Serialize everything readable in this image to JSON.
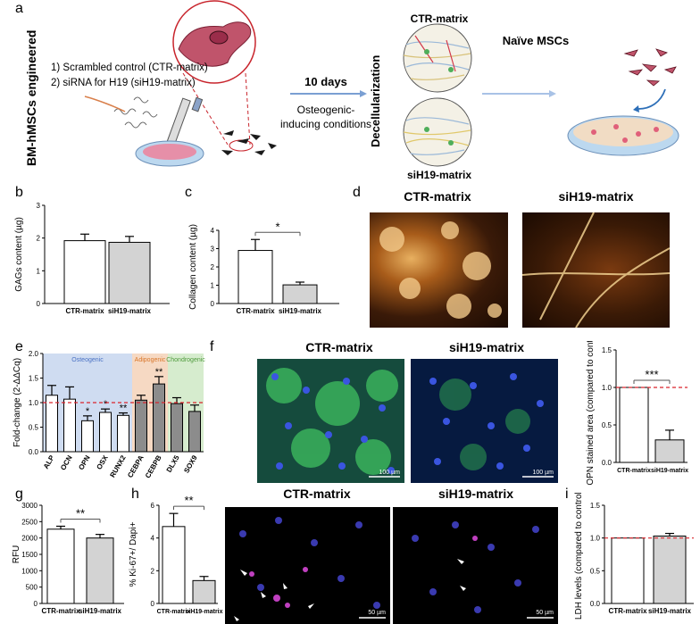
{
  "panels": {
    "a": "a",
    "b": "b",
    "c": "c",
    "d": "d",
    "e": "e",
    "f": "f",
    "g": "g",
    "h": "h",
    "i": "i"
  },
  "schematic": {
    "side_label": "BM-hMSCs engineered",
    "step1": "1) Scrambled control (CTR-matrix)",
    "step2": "2) siRNA for H19 (siH19-matrix)",
    "days": "10 days",
    "condition_line1": "Osteogenic-",
    "condition_line2": "inducing conditions",
    "decell": "Decellularization",
    "ctr": "CTR-matrix",
    "sih19": "siH19-matrix",
    "naive": "Naïve MSCs"
  },
  "micrographs": {
    "d_ctr": "CTR-matrix",
    "d_sih19": "siH19-matrix",
    "f_ctr": "CTR-matrix",
    "f_sih19": "siH19-matrix",
    "h_ctr": "CTR-matrix",
    "h_sih19": "siH19-matrix",
    "scale_100": "100 µm",
    "scale_50": "50 µm"
  },
  "chart_data": [
    {
      "panel": "b",
      "type": "bar",
      "categories": [
        "CTR-matrix",
        "siH19-matrix"
      ],
      "values": [
        1.92,
        1.87
      ],
      "errors": [
        0.2,
        0.18
      ],
      "ylabel": "GAGs content (µg)",
      "ylim": [
        0,
        3
      ],
      "yticks": [
        "0",
        "1",
        "2",
        "3"
      ],
      "colors": [
        "#ffffff",
        "#d3d3d3"
      ]
    },
    {
      "panel": "c",
      "type": "bar",
      "categories": [
        "CTR-matrix",
        "siH19-matrix"
      ],
      "values": [
        2.9,
        1.02
      ],
      "errors": [
        0.6,
        0.15
      ],
      "ylabel": "Collagen content (µg)",
      "ylim": [
        0,
        4
      ],
      "yticks": [
        "0",
        "1",
        "2",
        "3",
        "4"
      ],
      "colors": [
        "#ffffff",
        "#d3d3d3"
      ],
      "significance": "*"
    },
    {
      "panel": "e",
      "type": "bar",
      "categories": [
        "ALP",
        "OCN",
        "OPN",
        "OSX",
        "RUNX2",
        "CEBPA",
        "CEBPB",
        "DLX5",
        "SOX9"
      ],
      "values": [
        1.15,
        1.07,
        0.63,
        0.8,
        0.74,
        1.05,
        1.38,
        0.98,
        0.82
      ],
      "errors": [
        0.2,
        0.25,
        0.1,
        0.07,
        0.05,
        0.1,
        0.15,
        0.12,
        0.13
      ],
      "ylabel": "Fold-change (2-ΔΔCq)",
      "ylim": [
        0,
        2
      ],
      "yticks": [
        "0.0",
        "0.5",
        "1.0",
        "1.5",
        "2.0"
      ],
      "reference_line": 1.0,
      "colors": [
        "#ffffff",
        "#ffffff",
        "#ffffff",
        "#ffffff",
        "#ffffff",
        "#8c8c8c",
        "#8c8c8c",
        "#8c8c8c",
        "#8c8c8c"
      ],
      "marks": [
        "",
        "",
        "*",
        "*",
        "**",
        "",
        "**",
        "",
        ""
      ],
      "groups": [
        {
          "name": "Osteogenic",
          "color": "#4a72c4"
        },
        {
          "name": "Adipogenic",
          "color": "#d9772b"
        },
        {
          "name": "Chondrogenic",
          "color": "#4f9a3c"
        }
      ]
    },
    {
      "panel": "f",
      "type": "bar",
      "categories": [
        "CTR-matrix",
        "siH19-matrix"
      ],
      "values": [
        1.0,
        0.3
      ],
      "errors": [
        0,
        0.13
      ],
      "ylabel": "OPN stained area (compared to control)",
      "ylim": [
        0,
        1.5
      ],
      "yticks": [
        "0.0",
        "0.5",
        "1.0",
        "1.5"
      ],
      "reference_line": 1.0,
      "colors": [
        "#ffffff",
        "#d3d3d3"
      ],
      "significance": "***"
    },
    {
      "panel": "g",
      "type": "bar",
      "categories": [
        "CTR-matrix",
        "siH19-matrix"
      ],
      "values": [
        2270,
        2000
      ],
      "errors": [
        90,
        110
      ],
      "ylabel": "RFU",
      "ylim": [
        0,
        3000
      ],
      "yticks": [
        "0",
        "500",
        "1000",
        "1500",
        "2000",
        "2500",
        "3000"
      ],
      "colors": [
        "#ffffff",
        "#d3d3d3"
      ],
      "significance": "**"
    },
    {
      "panel": "h",
      "type": "bar",
      "categories": [
        "CTR-matrix",
        "siH19-matrix"
      ],
      "values": [
        4.7,
        1.4
      ],
      "errors": [
        0.8,
        0.25
      ],
      "ylabel": "% Ki-67+/ Dapi+",
      "ylim": [
        0,
        6
      ],
      "yticks": [
        "0",
        "2",
        "4",
        "6"
      ],
      "colors": [
        "#ffffff",
        "#d3d3d3"
      ],
      "significance": "**"
    },
    {
      "panel": "i",
      "type": "bar",
      "categories": [
        "CTR-matrix",
        "siH19-matrix"
      ],
      "values": [
        1.0,
        1.03
      ],
      "errors": [
        0,
        0.04
      ],
      "ylabel": "LDH levels (compared to control)",
      "ylim": [
        0,
        1.5
      ],
      "yticks": [
        "0.0",
        "0.5",
        "1.0",
        "1.5"
      ],
      "reference_line": 1.0,
      "colors": [
        "#ffffff",
        "#d3d3d3"
      ]
    }
  ]
}
